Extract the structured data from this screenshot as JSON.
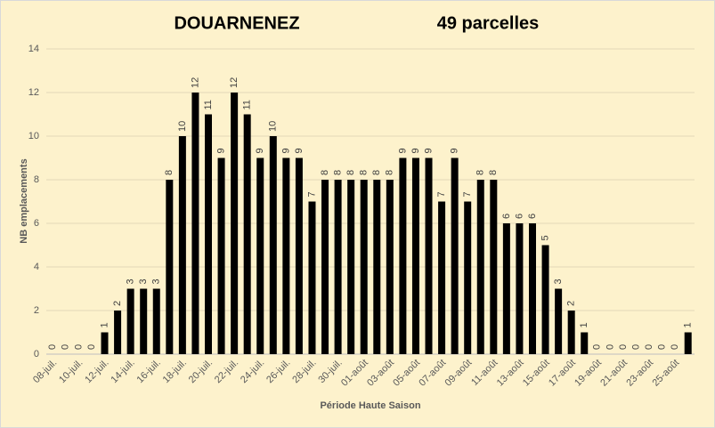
{
  "chart_data": {
    "type": "bar",
    "title": "DOUARNENEZ",
    "subtitle": "49 parcelles",
    "x_label": "Période Haute Saison",
    "y_label": "NB emplacements",
    "categories": [
      "08-juil.",
      null,
      "10-juil.",
      null,
      "12-juil.",
      null,
      "14-juil.",
      null,
      "16-juil.",
      null,
      "18-juil.",
      null,
      "20-juil.",
      null,
      "22-juil.",
      null,
      "24-juil.",
      null,
      "26-juil.",
      null,
      "28-juil.",
      null,
      "30-juil.",
      null,
      "01-août",
      null,
      "03-août",
      null,
      "05-août",
      null,
      "07-août",
      null,
      "09-août",
      null,
      "11-août",
      null,
      "13-août",
      null,
      "15-août",
      null,
      "17-août",
      null,
      "19-août",
      null,
      "21-août",
      null,
      "23-août",
      null,
      "25-août",
      null
    ],
    "values": [
      0,
      0,
      0,
      0,
      1,
      2,
      3,
      3,
      3,
      8,
      10,
      12,
      11,
      9,
      12,
      11,
      9,
      10,
      9,
      9,
      7,
      8,
      8,
      8,
      8,
      8,
      8,
      9,
      9,
      9,
      7,
      9,
      7,
      8,
      8,
      6,
      6,
      6,
      5,
      3,
      2,
      1,
      0,
      0,
      0,
      0,
      0,
      0,
      0,
      1
    ],
    "color": "#000000",
    "ylim": [
      0,
      14
    ],
    "yticks": [
      0,
      2,
      4,
      6,
      8,
      10,
      12,
      14
    ],
    "grid": true
  }
}
